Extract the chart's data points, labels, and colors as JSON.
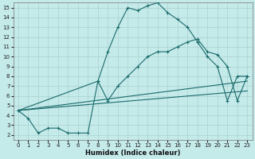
{
  "xlabel": "Humidex (Indice chaleur)",
  "bg_color": "#c5eaea",
  "grid_color": "#afd4d4",
  "line_color": "#1a6b6b",
  "xlim": [
    -0.5,
    23.5
  ],
  "ylim": [
    1.5,
    15.5
  ],
  "xticks": [
    0,
    1,
    2,
    3,
    4,
    5,
    6,
    7,
    8,
    9,
    10,
    11,
    12,
    13,
    14,
    15,
    16,
    17,
    18,
    19,
    20,
    21,
    22,
    23
  ],
  "yticks": [
    2,
    3,
    4,
    5,
    6,
    7,
    8,
    9,
    10,
    11,
    12,
    13,
    14,
    15
  ],
  "series": [
    {
      "x": [
        0,
        1,
        2,
        3,
        4,
        5,
        6,
        7,
        8,
        9,
        10,
        11,
        12,
        13,
        14,
        15,
        16,
        17,
        18,
        19,
        20,
        21,
        22,
        23
      ],
      "y": [
        4.5,
        3.7,
        2.2,
        2.7,
        2.7,
        2.2,
        2.2,
        2.2,
        7.5,
        10.5,
        13.0,
        15.0,
        14.7,
        15.2,
        15.5,
        14.5,
        13.8,
        13.0,
        11.5,
        10.0,
        9.0,
        5.5,
        8.0,
        8.0
      ],
      "markers": true
    },
    {
      "x": [
        0,
        8,
        9,
        10,
        11,
        12,
        13,
        14,
        15,
        16,
        17,
        18,
        19,
        20,
        21,
        22,
        23
      ],
      "y": [
        4.5,
        7.5,
        5.5,
        7.0,
        8.0,
        9.0,
        10.0,
        10.5,
        10.5,
        11.0,
        11.5,
        11.8,
        10.5,
        10.2,
        9.0,
        5.5,
        8.0
      ],
      "markers": true
    },
    {
      "x": [
        0,
        23
      ],
      "y": [
        4.5,
        7.5
      ],
      "markers": false
    },
    {
      "x": [
        0,
        23
      ],
      "y": [
        4.5,
        6.5
      ],
      "markers": false
    }
  ]
}
